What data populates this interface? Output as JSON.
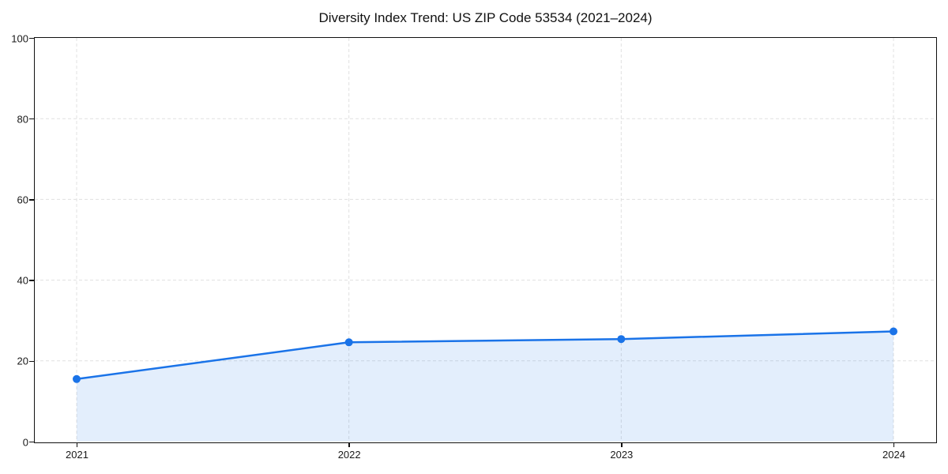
{
  "chart_data": {
    "type": "line",
    "title": "Diversity Index Trend: US ZIP Code 53534 (2021–2024)",
    "x": [
      "2021",
      "2022",
      "2023",
      "2024"
    ],
    "values": [
      15.5,
      24.6,
      25.4,
      27.3
    ],
    "xlabel": "",
    "ylabel": "",
    "ylim": [
      0,
      100
    ],
    "yticks": [
      0,
      20,
      40,
      60,
      80,
      100
    ],
    "grid": true,
    "grid_style": "dashed",
    "legend": "none",
    "colors": {
      "line": "#1a73e8",
      "marker": "#1a73e8",
      "fill": "#1a73e8",
      "fill_opacity": 0.12,
      "grid": "#e0e0e0",
      "spine": "#111111",
      "text": "#1a1a1a",
      "title": "#111111",
      "background": "#ffffff"
    }
  }
}
